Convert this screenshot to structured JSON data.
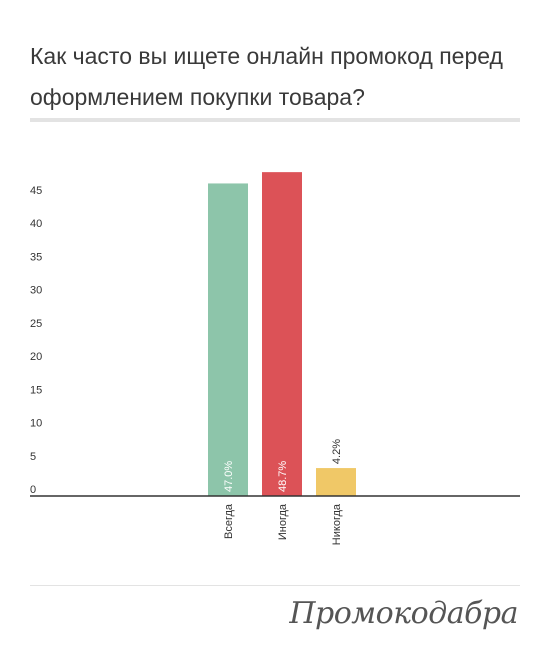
{
  "title": "Как часто вы ищете онлайн промокод перед оформлением покупки товара?",
  "brand": "Промокодабра",
  "colors": {
    "Всегда": "#8dc5aa",
    "Иногда": "#dc5257",
    "Никогда": "#f0c867",
    "axis": "#333333",
    "rule": "#e3e3e3"
  },
  "chart_data": {
    "type": "bar",
    "title": "Как часто вы ищете онлайн промокод перед оформлением покупки товара?",
    "xlabel": "",
    "ylabel": "",
    "categories": [
      "Всегда",
      "Иногда",
      "Никогда"
    ],
    "values": [
      47.0,
      48.7,
      4.2
    ],
    "data_labels": [
      "47.0%",
      "48.7%",
      "4.2%"
    ],
    "yticks": [
      0,
      5,
      10,
      15,
      20,
      25,
      30,
      35,
      40,
      45
    ],
    "ylim": [
      0,
      49
    ],
    "grid": false,
    "legend": "none"
  }
}
